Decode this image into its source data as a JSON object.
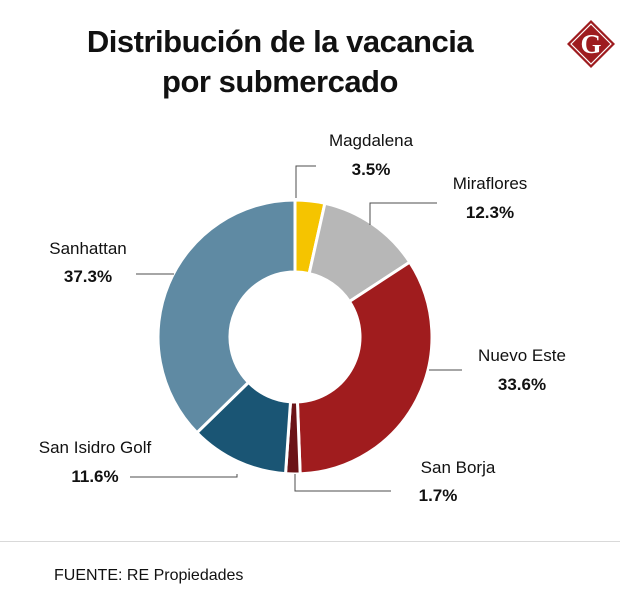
{
  "header": {
    "title_line1": "Distribución de la vacancia",
    "title_line2": "por submercado"
  },
  "logo": {
    "icon": "g-logo-icon",
    "letter": "G",
    "color": "#9e1c1f"
  },
  "chart_data": {
    "type": "donut",
    "title": "Distribución de la vacancia por submercado",
    "unit": "%",
    "slices": [
      {
        "label": "Magdalena",
        "value": 3.5,
        "display": "3.5%",
        "color": "#f5c400"
      },
      {
        "label": "Miraflores",
        "value": 12.3,
        "display": "12.3%",
        "color": "#b7b7b7"
      },
      {
        "label": "Nuevo Este",
        "value": 33.6,
        "display": "33.6%",
        "color": "#a01c1e"
      },
      {
        "label": "San Borja",
        "value": 1.7,
        "display": "1.7%",
        "color": "#6b1417"
      },
      {
        "label": "San Isidro Golf",
        "value": 11.6,
        "display": "11.6%",
        "color": "#1a5574"
      },
      {
        "label": "Sanhattan",
        "value": 37.3,
        "display": "37.3%",
        "color": "#5f8aa3"
      }
    ]
  },
  "footer": {
    "source": "FUENTE: RE Propiedades"
  }
}
